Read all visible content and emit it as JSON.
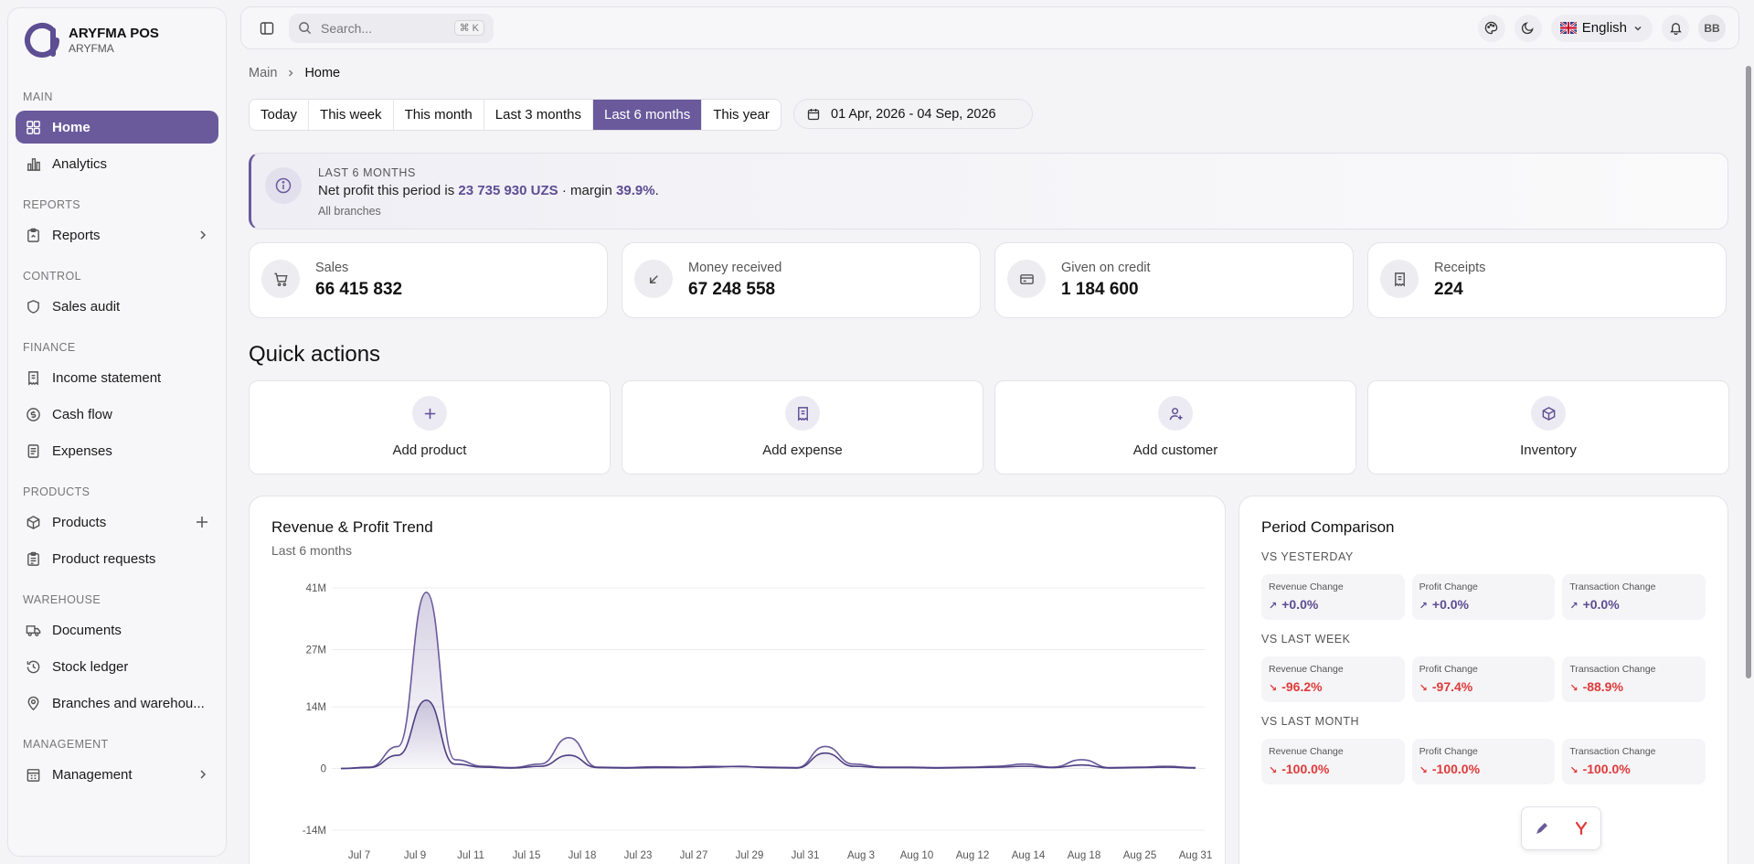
{
  "brand": {
    "title": "ARYFMA POS",
    "subtitle": "ARYFMA"
  },
  "sidebar": {
    "sections": [
      {
        "header": "MAIN",
        "items": [
          {
            "label": "Home",
            "icon": "dashboard-icon",
            "active": true
          },
          {
            "label": "Analytics",
            "icon": "bar-chart-icon"
          }
        ]
      },
      {
        "header": "REPORTS",
        "items": [
          {
            "label": "Reports",
            "icon": "clipboard-icon",
            "trail": "chevron"
          }
        ]
      },
      {
        "header": "CONTROL",
        "items": [
          {
            "label": "Sales audit",
            "icon": "shield-icon"
          }
        ]
      },
      {
        "header": "FINANCE",
        "items": [
          {
            "label": "Income statement",
            "icon": "receipt-icon"
          },
          {
            "label": "Cash flow",
            "icon": "coin-icon"
          },
          {
            "label": "Expenses",
            "icon": "document-icon"
          }
        ]
      },
      {
        "header": "PRODUCTS",
        "items": [
          {
            "label": "Products",
            "icon": "package-icon",
            "trail": "plus"
          },
          {
            "label": "Product requests",
            "icon": "clipboard-list-icon"
          }
        ]
      },
      {
        "header": "WAREHOUSE",
        "items": [
          {
            "label": "Documents",
            "icon": "truck-icon"
          },
          {
            "label": "Stock ledger",
            "icon": "history-icon"
          },
          {
            "label": "Branches and warehou...",
            "icon": "map-pin-icon"
          }
        ]
      },
      {
        "header": "MANAGEMENT",
        "items": [
          {
            "label": "Management",
            "icon": "building-icon",
            "trail": "chevron"
          }
        ]
      }
    ]
  },
  "topbar": {
    "search_placeholder": "Search...",
    "search_shortcut": "⌘ K",
    "language": "English",
    "avatar": "BB"
  },
  "breadcrumb": {
    "root": "Main",
    "current": "Home"
  },
  "period_tabs": [
    "Today",
    "This week",
    "This month",
    "Last 3 months",
    "Last 6 months",
    "This year"
  ],
  "period_active": "Last 6 months",
  "date_range": "01 Apr, 2026 - 04 Sep, 2026",
  "banner": {
    "tag": "LAST 6 MONTHS",
    "text_before": "Net profit this period is ",
    "profit": "23 735 930 UZS",
    "text_mid": " · margin ",
    "margin": "39.9%",
    "text_after": ".",
    "sub": "All branches"
  },
  "stats": [
    {
      "label": "Sales",
      "value": "66 415 832",
      "icon": "cart-icon"
    },
    {
      "label": "Money received",
      "value": "67 248 558",
      "icon": "arrow-down-left-icon"
    },
    {
      "label": "Given on credit",
      "value": "1 184 600",
      "icon": "credit-card-icon"
    },
    {
      "label": "Receipts",
      "value": "224",
      "icon": "receipt-icon"
    }
  ],
  "quick_actions": {
    "title": "Quick actions",
    "items": [
      {
        "label": "Add product",
        "icon": "plus-icon"
      },
      {
        "label": "Add expense",
        "icon": "receipt-icon"
      },
      {
        "label": "Add customer",
        "icon": "user-plus-icon"
      },
      {
        "label": "Inventory",
        "icon": "package-icon"
      }
    ]
  },
  "trend": {
    "title": "Revenue & Profit Trend",
    "subtitle": "Last 6 months"
  },
  "chart_data": {
    "type": "area",
    "title": "Revenue & Profit Trend",
    "subtitle": "Last 6 months",
    "y_ticks": [
      "41M",
      "27M",
      "14M",
      "0",
      "-14M"
    ],
    "ylim": [
      -14000000,
      41000000
    ],
    "x_ticks": [
      "Jul 7",
      "Jul 9",
      "Jul 11",
      "Jul 15",
      "Jul 18",
      "Jul 23",
      "Jul 27",
      "Jul 29",
      "Jul 31",
      "Aug 3",
      "Aug 10",
      "Aug 12",
      "Aug 14",
      "Aug 18",
      "Aug 25",
      "Aug 31"
    ],
    "grid": true,
    "accent": "#6a5a9c",
    "series": [
      {
        "values": [
          0,
          0.3,
          5,
          40,
          2,
          0.5,
          0.2,
          1,
          7,
          0.3,
          0.2,
          0.4,
          0.3,
          0.5,
          0.4,
          0.3,
          0.2,
          5,
          1,
          0.3,
          0.3,
          0.2,
          0.3,
          0.5,
          1,
          0.3,
          2,
          0.2,
          0.3,
          0.5,
          0.2
        ]
      },
      {
        "values": [
          0,
          0.2,
          3,
          15.5,
          1,
          0.3,
          0.1,
          0.5,
          3,
          0.2,
          0.1,
          0.2,
          0.2,
          0.3,
          0.5,
          0.2,
          0.1,
          3.5,
          0.5,
          0.2,
          0.2,
          0.1,
          0.2,
          0.3,
          0.5,
          0.2,
          0.8,
          0.1,
          0.2,
          0.3,
          0.1
        ]
      }
    ]
  },
  "period_comparison": {
    "title": "Period Comparison",
    "groups": [
      {
        "title": "VS YESTERDAY",
        "cells": [
          {
            "label": "Revenue Change",
            "value": "+0.0%",
            "dir": "up"
          },
          {
            "label": "Profit Change",
            "value": "+0.0%",
            "dir": "up"
          },
          {
            "label": "Transaction Change",
            "value": "+0.0%",
            "dir": "up"
          }
        ]
      },
      {
        "title": "VS LAST WEEK",
        "cells": [
          {
            "label": "Revenue Change",
            "value": "-96.2%",
            "dir": "down"
          },
          {
            "label": "Profit Change",
            "value": "-97.4%",
            "dir": "down"
          },
          {
            "label": "Transaction Change",
            "value": "-88.9%",
            "dir": "down"
          }
        ]
      },
      {
        "title": "VS LAST MONTH",
        "cells": [
          {
            "label": "Revenue Change",
            "value": "-100.0%",
            "dir": "down"
          },
          {
            "label": "Profit Change",
            "value": "-100.0%",
            "dir": "down"
          },
          {
            "label": "Transaction Change",
            "value": "-100.0%",
            "dir": "down"
          }
        ]
      }
    ]
  },
  "colors": {
    "accent": "#6a5a9c",
    "negative": "#e03a3a"
  }
}
